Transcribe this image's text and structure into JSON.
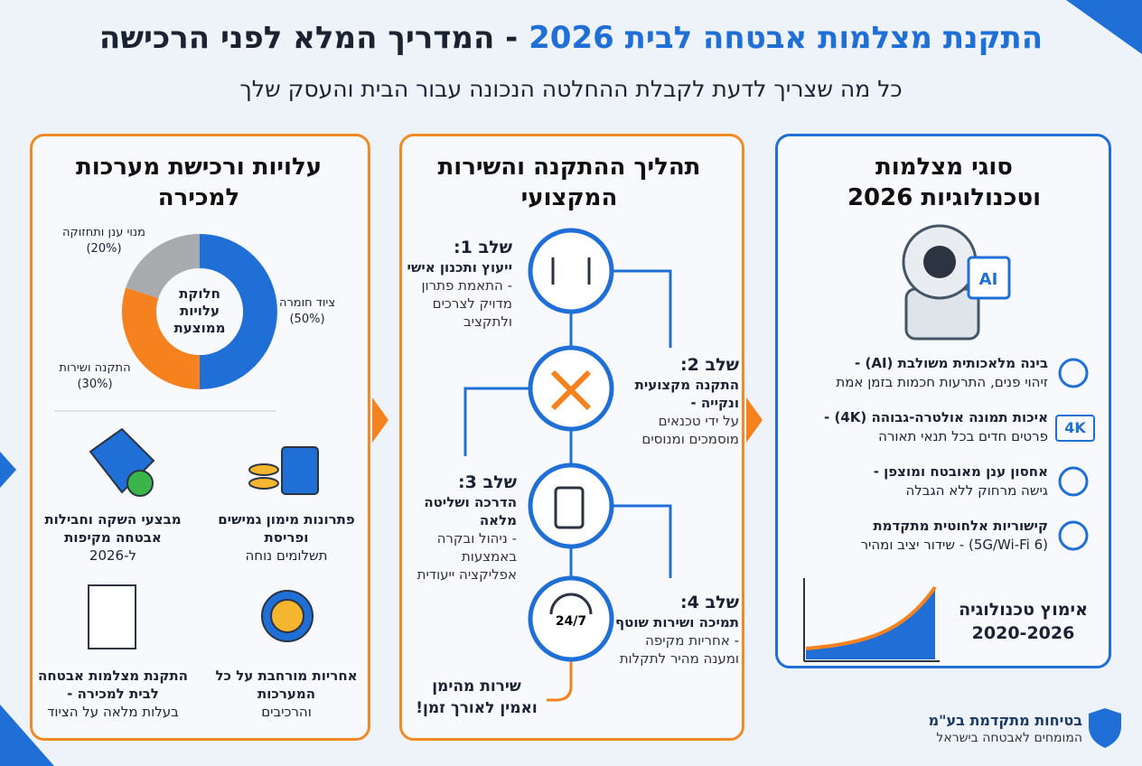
{
  "header": {
    "title_highlight": "התקנת מצלמות אבטחה לבית 2026",
    "title_rest": "- המדריך המלא לפני הרכישה",
    "subtitle": "כל מה שצריך לדעת לקבלת ההחלטה הנכונה עבור הבית והעסק שלך"
  },
  "types": {
    "title": "סוגי מצלמות וטכנולוגיות 2026",
    "chip": "AI",
    "features": [
      {
        "title": "בינה מלאכותית משולבת (AI) -",
        "desc": "זיהוי פנים, התרעות חכמות בזמן אמת"
      },
      {
        "title": "איכות תמונה אולטרה-גבוהה (4K) -",
        "desc": "פרטים חדים בכל תנאי תאורה",
        "badge": "4K"
      },
      {
        "title": "אחסון ענן מאובטח ומוצפן -",
        "desc": "גישה מרחוק ללא הגבלה"
      },
      {
        "title": "קישוריות אלחוטית מתקדמת",
        "desc": "(5G/Wi-Fi 6) - שידור יציב ומהיר"
      }
    ],
    "adoption": {
      "title": "אימוץ טכנולוגיה",
      "years": "2020-2026"
    }
  },
  "process": {
    "title": "תהליך ההתקנה והשירות המקצועי",
    "steps": [
      {
        "label": "שלב 1:",
        "title": "ייעוץ ותכנון אישי",
        "desc": "- התאמת פתרון מדויק לצרכים ולתקציב"
      },
      {
        "label": "שלב 2:",
        "title": "התקנה מקצועית ונקייה -",
        "desc": "על ידי טכנאים מוסמכים ומנוסים"
      },
      {
        "label": "שלב 3:",
        "title": "הדרכה ושליטה מלאה",
        "desc": "- ניהול ובקרה באמצעות אפליקציה ייעודית"
      },
      {
        "label": "שלב 4:",
        "title": "תמיכה ושירות שוטף",
        "desc": "- אחריות מקיפה ומענה מהיר לתקלות"
      }
    ],
    "support_icon": "24/7",
    "footer": "שירות מהימן ואמין לאורך זמן!"
  },
  "costs": {
    "title": "עלויות ורכישת מערכות למכירה",
    "donut": {
      "center": "חלוקת עלויות ממוצעת",
      "segments": [
        {
          "name": "ציוד חומרה",
          "value": 50,
          "label": "(50%)",
          "color": "#1f6fd6"
        },
        {
          "name": "התקנה ושירות",
          "value": 30,
          "label": "(30%)",
          "color": "#f5821f"
        },
        {
          "name": "מנוי ענן ותחזוקה",
          "value": 20,
          "label": "(20%)",
          "color": "#a9aaad"
        }
      ]
    },
    "items": [
      {
        "title": "פתרונות מימון גמישים ופריסת",
        "desc": "תשלומים נוחה"
      },
      {
        "title": "מבצעי השקה וחבילות אבטחה מקיפות",
        "desc": "ל-2026"
      },
      {
        "title": "אחריות מורחבת על כל המערכות",
        "desc": "והרכיבים"
      },
      {
        "title": "התקנת מצלמות אבטחה לבית למכירה -",
        "desc": "בעלות מלאה על הציוד"
      }
    ]
  },
  "brand": {
    "name": "בטיחות מתקדמת בע\"מ",
    "tagline": "המומחים לאבטחה בישראל"
  }
}
